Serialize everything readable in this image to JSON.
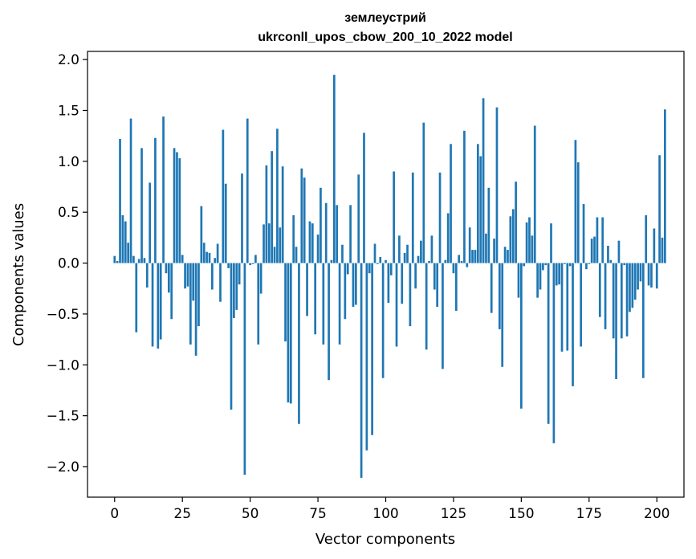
{
  "chart_data": {
    "type": "bar",
    "title": "землеустрий",
    "subtitle": "ukrconll_upos_cbow_200_10_2022 model",
    "xlabel": "Vector components",
    "ylabel": "Components values",
    "xlim": [
      -10,
      210
    ],
    "ylim": [
      -2.3,
      2.08
    ],
    "xticks": [
      0,
      25,
      50,
      75,
      100,
      125,
      150,
      175,
      200
    ],
    "yticks": [
      -2.0,
      -1.5,
      -1.0,
      -0.5,
      0.0,
      0.5,
      1.0,
      1.5,
      2.0
    ],
    "xtick_labels": [
      "0",
      "25",
      "50",
      "75",
      "100",
      "125",
      "150",
      "175",
      "200"
    ],
    "ytick_labels": [
      "−2.0",
      "−1.5",
      "−1.0",
      "−0.5",
      "0.0",
      "0.5",
      "1.0",
      "1.5",
      "2.0"
    ],
    "color": "#1f77b4",
    "grid": false,
    "values": [
      0.07,
      0.02,
      1.22,
      0.47,
      0.41,
      0.2,
      1.42,
      0.07,
      -0.68,
      0.04,
      1.13,
      0.05,
      -0.24,
      0.79,
      -0.82,
      1.23,
      -0.84,
      -0.75,
      1.44,
      -0.1,
      -0.29,
      -0.55,
      1.13,
      1.09,
      1.03,
      0.08,
      -0.25,
      -0.23,
      -0.8,
      -0.37,
      -0.91,
      -0.62,
      0.56,
      0.2,
      0.11,
      0.1,
      -0.26,
      0.05,
      0.19,
      -0.38,
      1.31,
      0.78,
      -0.05,
      -1.44,
      -0.54,
      -0.46,
      -0.21,
      0.88,
      -2.08,
      1.42,
      -0.02,
      -0.01,
      0.08,
      -0.8,
      -0.3,
      0.38,
      0.96,
      0.39,
      1.1,
      0.16,
      1.32,
      0.35,
      0.95,
      -0.77,
      -1.37,
      -1.38,
      0.47,
      0.16,
      -1.58,
      0.93,
      0.84,
      -0.52,
      0.41,
      0.39,
      -0.7,
      0.28,
      0.74,
      -0.8,
      0.59,
      -1.15,
      0.03,
      1.85,
      0.57,
      -0.8,
      0.18,
      -0.55,
      -0.11,
      0.57,
      -0.43,
      -0.41,
      0.87,
      -2.11,
      1.28,
      -1.84,
      -0.1,
      -1.69,
      0.19,
      -0.01,
      0.06,
      -1.13,
      0.03,
      -0.39,
      -0.12,
      0.9,
      -0.82,
      0.27,
      -0.4,
      0.1,
      0.18,
      -0.62,
      0.89,
      -0.25,
      0.07,
      0.22,
      1.38,
      -0.85,
      0.02,
      0.27,
      -0.26,
      -0.43,
      0.89,
      -1.04,
      0.03,
      0.49,
      1.17,
      -0.1,
      -0.47,
      0.08,
      0.02,
      1.3,
      -0.04,
      0.35,
      0.13,
      0.13,
      1.17,
      1.05,
      1.62,
      0.29,
      0.74,
      -0.49,
      0.24,
      1.53,
      -0.65,
      -1.02,
      0.16,
      0.13,
      0.46,
      0.53,
      0.8,
      -0.34,
      -1.43,
      -0.03,
      0.4,
      0.45,
      0.27,
      1.35,
      -0.34,
      -0.26,
      -0.07,
      -0.02,
      -1.58,
      0.39,
      -1.77,
      -0.22,
      -0.21,
      -0.87,
      -0.01,
      -0.86,
      -0.03,
      -1.21,
      1.21,
      0.99,
      -0.82,
      0.58,
      -0.06,
      -0.01,
      0.24,
      0.26,
      0.45,
      -0.53,
      0.45,
      -0.65,
      0.17,
      0.03,
      -0.74,
      -1.14,
      0.22,
      -0.74,
      -0.02,
      -0.72,
      -0.48,
      -0.44,
      -0.36,
      -0.26,
      -0.18,
      -1.13,
      0.47,
      -0.22,
      -0.24,
      0.34,
      -0.25,
      1.06,
      0.25,
      1.51
    ]
  }
}
